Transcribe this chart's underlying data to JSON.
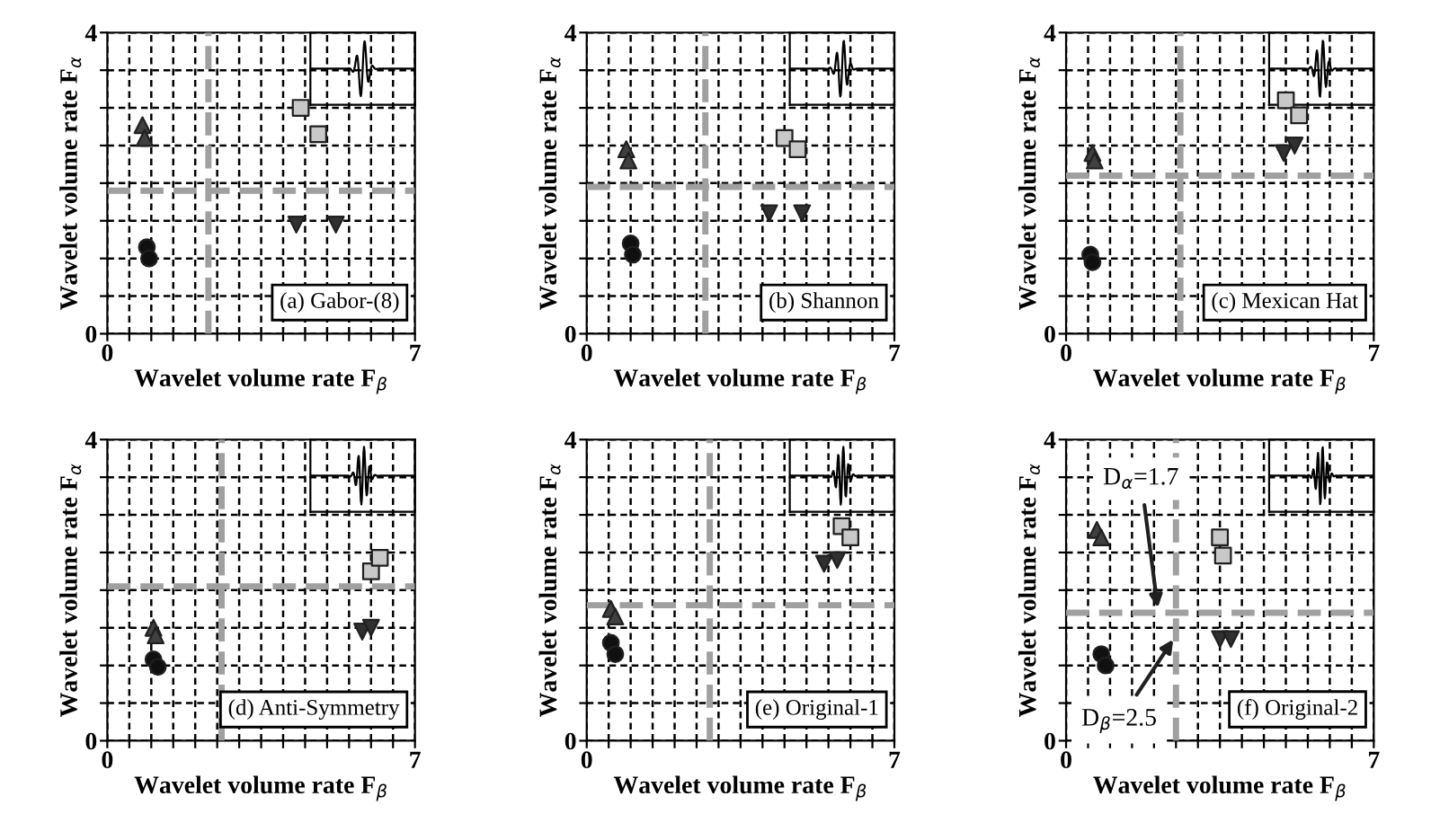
{
  "chart_data": [
    {
      "type": "scatter",
      "xlabel": "Wavelet volume rate F$_{β}$",
      "ylabel": "Wavelet volume rate F$_{α}$",
      "annotations": [
        "(a) Gabor-(8)"
      ],
      "xlim": [
        0,
        7
      ],
      "ylim": [
        0,
        4
      ],
      "xticks": [
        0,
        {
          "value": 0.5,
          "label": null
        },
        {
          "value": 1,
          "label": null
        },
        {
          "value": 1.5,
          "label": null
        },
        {
          "value": 2,
          "label": null
        },
        {
          "value": 2.5,
          "label": null
        },
        {
          "value": 3,
          "label": null
        },
        {
          "value": 3.5,
          "label": null
        },
        {
          "value": 4,
          "label": null
        },
        {
          "value": 4.5,
          "label": null
        },
        {
          "value": 5,
          "label": null
        },
        {
          "value": 5.5,
          "label": null
        },
        {
          "value": 6,
          "label": null
        },
        {
          "value": 6.5,
          "label": null
        },
        7
      ],
      "yticks": [
        0,
        {
          "value": 0.5,
          "label": null
        },
        {
          "value": 1,
          "label": null
        },
        {
          "value": 1.5,
          "label": null
        },
        {
          "value": 2,
          "label": null
        },
        {
          "value": 2.5,
          "label": null
        },
        {
          "value": 3,
          "label": null
        },
        {
          "value": 3.5,
          "label": null
        },
        4
      ],
      "grid": true,
      "series": [
        {
          "marker": "triangle",
          "color": "#404040",
          "x": [
            0.8,
            0.85
          ],
          "values": [
            2.77,
            2.6
          ]
        },
        {
          "marker": "circle",
          "color": "#101010",
          "x": [
            0.9,
            0.95
          ],
          "values": [
            1.15,
            1.0
          ]
        },
        {
          "marker": "square",
          "color": "#c8c8c8",
          "x": [
            4.4,
            4.8
          ],
          "values": [
            3.0,
            2.65
          ]
        },
        {
          "marker": "triangle_down",
          "color": "#303030",
          "x": [
            4.3,
            5.2
          ],
          "values": [
            1.45,
            1.45
          ]
        }
      ],
      "ref_lines": [
        {
          "axis": "x",
          "value": 2.3,
          "color": "#a0a0a0",
          "line_style": "dashed"
        },
        {
          "axis": "y",
          "value": 1.9,
          "color": "#a0a0a0",
          "line_style": "dashed"
        }
      ]
    },
    {
      "type": "scatter",
      "xlabel": "Wavelet volume rate F$_{β}$",
      "ylabel": "Wavelet volume rate F$_{α}$",
      "annotations": [
        "(b) Shannon"
      ],
      "xlim": [
        0,
        7
      ],
      "ylim": [
        0,
        4
      ],
      "xticks": [
        0,
        {
          "value": 0.5,
          "label": null
        },
        {
          "value": 1,
          "label": null
        },
        {
          "value": 1.5,
          "label": null
        },
        {
          "value": 2,
          "label": null
        },
        {
          "value": 2.5,
          "label": null
        },
        {
          "value": 3,
          "label": null
        },
        {
          "value": 3.5,
          "label": null
        },
        {
          "value": 4,
          "label": null
        },
        {
          "value": 4.5,
          "label": null
        },
        {
          "value": 5,
          "label": null
        },
        {
          "value": 5.5,
          "label": null
        },
        {
          "value": 6,
          "label": null
        },
        {
          "value": 6.5,
          "label": null
        },
        7
      ],
      "yticks": [
        0,
        {
          "value": 0.5,
          "label": null
        },
        {
          "value": 1,
          "label": null
        },
        {
          "value": 1.5,
          "label": null
        },
        {
          "value": 2,
          "label": null
        },
        {
          "value": 2.5,
          "label": null
        },
        {
          "value": 3,
          "label": null
        },
        {
          "value": 3.5,
          "label": null
        },
        4
      ],
      "grid": true,
      "series": [
        {
          "marker": "triangle",
          "color": "#404040",
          "x": [
            0.9,
            0.95
          ],
          "values": [
            2.45,
            2.3
          ]
        },
        {
          "marker": "circle",
          "color": "#101010",
          "x": [
            1.0,
            1.05
          ],
          "values": [
            1.2,
            1.05
          ]
        },
        {
          "marker": "square",
          "color": "#c8c8c8",
          "x": [
            4.5,
            4.8
          ],
          "values": [
            2.6,
            2.45
          ]
        },
        {
          "marker": "triangle_down",
          "color": "#303030",
          "x": [
            4.15,
            4.9
          ],
          "values": [
            1.6,
            1.6
          ]
        }
      ],
      "ref_lines": [
        {
          "axis": "x",
          "value": 2.7,
          "color": "#a0a0a0",
          "line_style": "dashed"
        },
        {
          "axis": "y",
          "value": 1.95,
          "color": "#a0a0a0",
          "line_style": "dashed"
        }
      ]
    },
    {
      "type": "scatter",
      "xlabel": "Wavelet volume rate F$_{β}$",
      "ylabel": "Wavelet volume rate F$_{α}$",
      "annotations": [
        "(c) Mexican Hat"
      ],
      "xlim": [
        0,
        7
      ],
      "ylim": [
        0,
        4
      ],
      "xticks": [
        0,
        {
          "value": 0.5,
          "label": null
        },
        {
          "value": 1,
          "label": null
        },
        {
          "value": 1.5,
          "label": null
        },
        {
          "value": 2,
          "label": null
        },
        {
          "value": 2.5,
          "label": null
        },
        {
          "value": 3,
          "label": null
        },
        {
          "value": 3.5,
          "label": null
        },
        {
          "value": 4,
          "label": null
        },
        {
          "value": 4.5,
          "label": null
        },
        {
          "value": 5,
          "label": null
        },
        {
          "value": 5.5,
          "label": null
        },
        {
          "value": 6,
          "label": null
        },
        {
          "value": 6.5,
          "label": null
        },
        7
      ],
      "yticks": [
        0,
        {
          "value": 0.5,
          "label": null
        },
        {
          "value": 1,
          "label": null
        },
        {
          "value": 1.5,
          "label": null
        },
        {
          "value": 2,
          "label": null
        },
        {
          "value": 2.5,
          "label": null
        },
        {
          "value": 3,
          "label": null
        },
        {
          "value": 3.5,
          "label": null
        },
        4
      ],
      "grid": true,
      "series": [
        {
          "marker": "triangle",
          "color": "#404040",
          "x": [
            0.6,
            0.65
          ],
          "values": [
            2.4,
            2.3
          ]
        },
        {
          "marker": "circle",
          "color": "#101010",
          "x": [
            0.55,
            0.6
          ],
          "values": [
            1.05,
            0.95
          ]
        },
        {
          "marker": "square",
          "color": "#c8c8c8",
          "x": [
            5.0,
            5.3
          ],
          "values": [
            3.1,
            2.9
          ]
        },
        {
          "marker": "triangle_down",
          "color": "#303030",
          "x": [
            4.95,
            5.2
          ],
          "values": [
            2.4,
            2.5
          ]
        }
      ],
      "ref_lines": [
        {
          "axis": "x",
          "value": 2.6,
          "color": "#a0a0a0",
          "line_style": "dashed"
        },
        {
          "axis": "y",
          "value": 2.1,
          "color": "#a0a0a0",
          "line_style": "dashed"
        }
      ]
    },
    {
      "type": "scatter",
      "xlabel": "Wavelet volume rate F$_{β}$",
      "ylabel": "Wavelet volume rate F$_{α}$",
      "annotations": [
        "(d) Anti-Symmetry"
      ],
      "xlim": [
        0,
        7
      ],
      "ylim": [
        0,
        4
      ],
      "xticks": [
        0,
        {
          "value": 0.5,
          "label": null
        },
        {
          "value": 1,
          "label": null
        },
        {
          "value": 1.5,
          "label": null
        },
        {
          "value": 2,
          "label": null
        },
        {
          "value": 2.5,
          "label": null
        },
        {
          "value": 3,
          "label": null
        },
        {
          "value": 3.5,
          "label": null
        },
        {
          "value": 4,
          "label": null
        },
        {
          "value": 4.5,
          "label": null
        },
        {
          "value": 5,
          "label": null
        },
        {
          "value": 5.5,
          "label": null
        },
        {
          "value": 6,
          "label": null
        },
        {
          "value": 6.5,
          "label": null
        },
        7
      ],
      "yticks": [
        0,
        {
          "value": 0.5,
          "label": null
        },
        {
          "value": 1,
          "label": null
        },
        {
          "value": 1.5,
          "label": null
        },
        {
          "value": 2,
          "label": null
        },
        {
          "value": 2.5,
          "label": null
        },
        {
          "value": 3,
          "label": null
        },
        {
          "value": 3.5,
          "label": null
        },
        4
      ],
      "grid": true,
      "series": [
        {
          "marker": "triangle",
          "color": "#404040",
          "x": [
            1.05,
            1.1
          ],
          "values": [
            1.5,
            1.4
          ]
        },
        {
          "marker": "circle",
          "color": "#101010",
          "x": [
            1.05,
            1.15
          ],
          "values": [
            1.08,
            0.98
          ]
        },
        {
          "marker": "square",
          "color": "#c8c8c8",
          "x": [
            6.0,
            6.2
          ],
          "values": [
            2.25,
            2.43
          ]
        },
        {
          "marker": "triangle_down",
          "color": "#303030",
          "x": [
            5.8,
            6.0
          ],
          "values": [
            1.45,
            1.5
          ]
        }
      ],
      "ref_lines": [
        {
          "axis": "x",
          "value": 2.6,
          "color": "#a0a0a0",
          "line_style": "dashed"
        },
        {
          "axis": "y",
          "value": 2.05,
          "color": "#a0a0a0",
          "line_style": "dashed"
        }
      ]
    },
    {
      "type": "scatter",
      "xlabel": "Wavelet volume rate F$_{β}$",
      "ylabel": "Wavelet volume rate F$_{α}$",
      "annotations": [
        "(e) Original-1"
      ],
      "xlim": [
        0,
        7
      ],
      "ylim": [
        0,
        4
      ],
      "xticks": [
        0,
        {
          "value": 0.5,
          "label": null
        },
        {
          "value": 1,
          "label": null
        },
        {
          "value": 1.5,
          "label": null
        },
        {
          "value": 2,
          "label": null
        },
        {
          "value": 2.5,
          "label": null
        },
        {
          "value": 3,
          "label": null
        },
        {
          "value": 3.5,
          "label": null
        },
        {
          "value": 4,
          "label": null
        },
        {
          "value": 4.5,
          "label": null
        },
        {
          "value": 5,
          "label": null
        },
        {
          "value": 5.5,
          "label": null
        },
        {
          "value": 6,
          "label": null
        },
        {
          "value": 6.5,
          "label": null
        },
        7
      ],
      "yticks": [
        0,
        {
          "value": 0.5,
          "label": null
        },
        {
          "value": 1,
          "label": null
        },
        {
          "value": 1.5,
          "label": null
        },
        {
          "value": 2,
          "label": null
        },
        {
          "value": 2.5,
          "label": null
        },
        {
          "value": 3,
          "label": null
        },
        {
          "value": 3.5,
          "label": null
        },
        4
      ],
      "grid": true,
      "series": [
        {
          "marker": "triangle",
          "color": "#404040",
          "x": [
            0.55,
            0.65
          ],
          "values": [
            1.75,
            1.65
          ]
        },
        {
          "marker": "circle",
          "color": "#101010",
          "x": [
            0.55,
            0.65
          ],
          "values": [
            1.3,
            1.15
          ]
        },
        {
          "marker": "square",
          "color": "#c8c8c8",
          "x": [
            5.8,
            6.0
          ],
          "values": [
            2.85,
            2.7
          ]
        },
        {
          "marker": "triangle_down",
          "color": "#303030",
          "x": [
            5.4,
            5.7
          ],
          "values": [
            2.35,
            2.4
          ]
        }
      ],
      "ref_lines": [
        {
          "axis": "x",
          "value": 2.8,
          "color": "#a0a0a0",
          "line_style": "dashed"
        },
        {
          "axis": "y",
          "value": 1.8,
          "color": "#a0a0a0",
          "line_style": "dashed"
        }
      ]
    },
    {
      "type": "scatter",
      "xlabel": "Wavelet volume rate F$_{β}$",
      "ylabel": "Wavelet volume rate F$_{α}$",
      "annotations": [
        "(f) Original-2"
      ],
      "xlim": [
        0,
        7
      ],
      "ylim": [
        0,
        4
      ],
      "xticks": [
        0,
        {
          "value": 0.5,
          "label": null
        },
        {
          "value": 1,
          "label": null
        },
        {
          "value": 1.5,
          "label": null
        },
        {
          "value": 2,
          "label": null
        },
        {
          "value": 2.5,
          "label": null
        },
        {
          "value": 3,
          "label": null
        },
        {
          "value": 3.5,
          "label": null
        },
        {
          "value": 4,
          "label": null
        },
        {
          "value": 4.5,
          "label": null
        },
        {
          "value": 5,
          "label": null
        },
        {
          "value": 5.5,
          "label": null
        },
        {
          "value": 6,
          "label": null
        },
        {
          "value": 6.5,
          "label": null
        },
        7
      ],
      "yticks": [
        0,
        {
          "value": 0.5,
          "label": null
        },
        {
          "value": 1,
          "label": null
        },
        {
          "value": 1.5,
          "label": null
        },
        {
          "value": 2,
          "label": null
        },
        {
          "value": 2.5,
          "label": null
        },
        {
          "value": 3,
          "label": null
        },
        {
          "value": 3.5,
          "label": null
        },
        4
      ],
      "grid": true,
      "series": [
        {
          "marker": "triangle",
          "color": "#404040",
          "x": [
            0.7,
            0.8
          ],
          "values": [
            2.8,
            2.7
          ]
        },
        {
          "marker": "circle",
          "color": "#101010",
          "x": [
            0.8,
            0.9
          ],
          "values": [
            1.15,
            1.0
          ]
        },
        {
          "marker": "square",
          "color": "#c8c8c8",
          "x": [
            3.5,
            3.57
          ],
          "values": [
            2.7,
            2.46
          ]
        },
        {
          "marker": "triangle_down",
          "color": "#303030",
          "x": [
            3.5,
            3.75
          ],
          "values": [
            1.35,
            1.35
          ]
        }
      ],
      "ref_lines": [
        {
          "axis": "y",
          "value": 1.7,
          "label": "D$_{α}$=1.7",
          "color": "#a0a0a0",
          "line_style": "dashed"
        },
        {
          "axis": "x",
          "value": 2.5,
          "label": "D$_{β}$=2.5",
          "color": "#a0a0a0",
          "line_style": "dashed"
        }
      ]
    }
  ]
}
